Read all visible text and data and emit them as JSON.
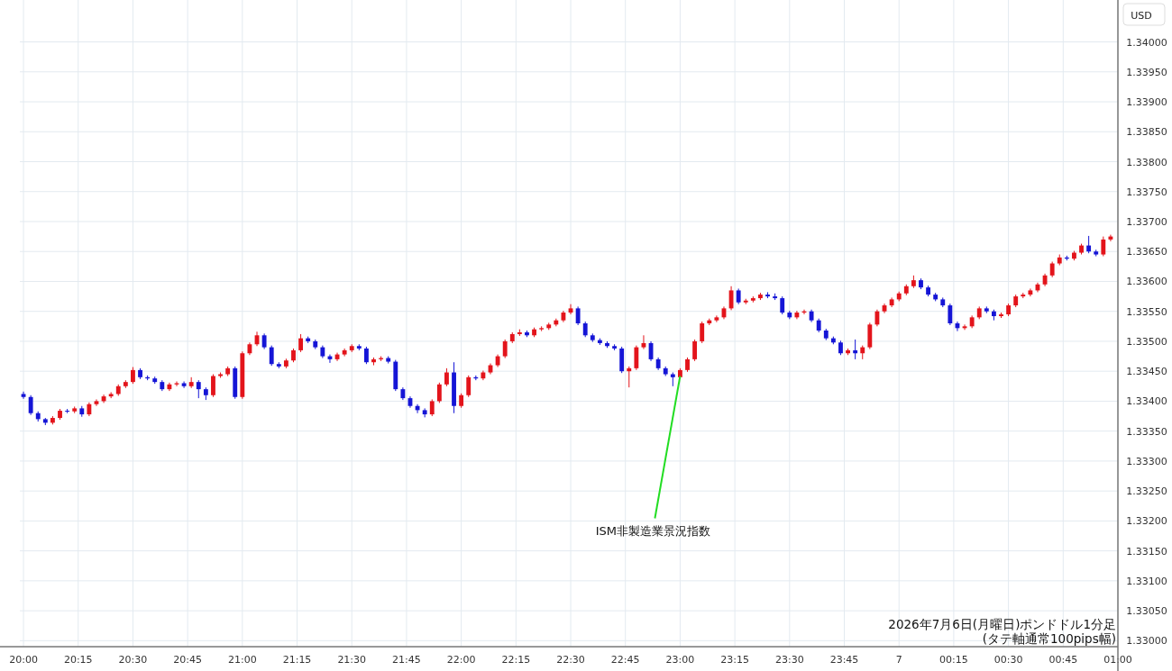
{
  "chart_data": {
    "type": "candlestick",
    "ylabel": "USD",
    "x": [
      "2026-07-06T20:00",
      "2026-07-06T20:02",
      "2026-07-06T20:04",
      "2026-07-06T20:06",
      "2026-07-06T20:08",
      "2026-07-06T20:10",
      "2026-07-06T20:12",
      "2026-07-06T20:14",
      "2026-07-06T20:16",
      "2026-07-06T20:18",
      "2026-07-06T20:20",
      "2026-07-06T20:22",
      "2026-07-06T20:24",
      "2026-07-06T20:26",
      "2026-07-06T20:28",
      "2026-07-06T20:30",
      "2026-07-06T20:32",
      "2026-07-06T20:34",
      "2026-07-06T20:36",
      "2026-07-06T20:38",
      "2026-07-06T20:40",
      "2026-07-06T20:42",
      "2026-07-06T20:44",
      "2026-07-06T20:46",
      "2026-07-06T20:48",
      "2026-07-06T20:50",
      "2026-07-06T20:52",
      "2026-07-06T20:54",
      "2026-07-06T20:56",
      "2026-07-06T20:58",
      "2026-07-06T21:00",
      "2026-07-06T21:02",
      "2026-07-06T21:04",
      "2026-07-06T21:06",
      "2026-07-06T21:08",
      "2026-07-06T21:10",
      "2026-07-06T21:12",
      "2026-07-06T21:14",
      "2026-07-06T21:16",
      "2026-07-06T21:18",
      "2026-07-06T21:20",
      "2026-07-06T21:22",
      "2026-07-06T21:24",
      "2026-07-06T21:26",
      "2026-07-06T21:28",
      "2026-07-06T21:30",
      "2026-07-06T21:32",
      "2026-07-06T21:34",
      "2026-07-06T21:36",
      "2026-07-06T21:38",
      "2026-07-06T21:40",
      "2026-07-06T21:42",
      "2026-07-06T21:44",
      "2026-07-06T21:46",
      "2026-07-06T21:48",
      "2026-07-06T21:50",
      "2026-07-06T21:52",
      "2026-07-06T21:54",
      "2026-07-06T21:56",
      "2026-07-06T21:58",
      "2026-07-06T22:00",
      "2026-07-06T22:02",
      "2026-07-06T22:04",
      "2026-07-06T22:06",
      "2026-07-06T22:08",
      "2026-07-06T22:10",
      "2026-07-06T22:12",
      "2026-07-06T22:14",
      "2026-07-06T22:16",
      "2026-07-06T22:18",
      "2026-07-06T22:20",
      "2026-07-06T22:22",
      "2026-07-06T22:24",
      "2026-07-06T22:26",
      "2026-07-06T22:28",
      "2026-07-06T22:30",
      "2026-07-06T22:32",
      "2026-07-06T22:34",
      "2026-07-06T22:36",
      "2026-07-06T22:38",
      "2026-07-06T22:40",
      "2026-07-06T22:42",
      "2026-07-06T22:44",
      "2026-07-06T22:46",
      "2026-07-06T22:48",
      "2026-07-06T22:50",
      "2026-07-06T22:52",
      "2026-07-06T22:54",
      "2026-07-06T22:56",
      "2026-07-06T22:58",
      "2026-07-06T23:00",
      "2026-07-06T23:02",
      "2026-07-06T23:04",
      "2026-07-06T23:06",
      "2026-07-06T23:08",
      "2026-07-06T23:10",
      "2026-07-06T23:12",
      "2026-07-06T23:14",
      "2026-07-06T23:16",
      "2026-07-06T23:18",
      "2026-07-06T23:20",
      "2026-07-06T23:22",
      "2026-07-06T23:24",
      "2026-07-06T23:26",
      "2026-07-06T23:28",
      "2026-07-06T23:30",
      "2026-07-06T23:32",
      "2026-07-06T23:34",
      "2026-07-06T23:36",
      "2026-07-06T23:38",
      "2026-07-06T23:40",
      "2026-07-06T23:42",
      "2026-07-06T23:44",
      "2026-07-06T23:46",
      "2026-07-06T23:48",
      "2026-07-06T23:50",
      "2026-07-06T23:52",
      "2026-07-06T23:54",
      "2026-07-06T23:56",
      "2026-07-06T23:58",
      "2026-07-07T00:00",
      "2026-07-07T00:02",
      "2026-07-07T00:04",
      "2026-07-07T00:06",
      "2026-07-07T00:08",
      "2026-07-07T00:10",
      "2026-07-07T00:12",
      "2026-07-07T00:14",
      "2026-07-07T00:16",
      "2026-07-07T00:18",
      "2026-07-07T00:20",
      "2026-07-07T00:22",
      "2026-07-07T00:24",
      "2026-07-07T00:26",
      "2026-07-07T00:28",
      "2026-07-07T00:30",
      "2026-07-07T00:32",
      "2026-07-07T00:34",
      "2026-07-07T00:36",
      "2026-07-07T00:38",
      "2026-07-07T00:40",
      "2026-07-07T00:42",
      "2026-07-07T00:44",
      "2026-07-07T00:46",
      "2026-07-07T00:48",
      "2026-07-07T00:50",
      "2026-07-07T00:52",
      "2026-07-07T00:54",
      "2026-07-07T00:56",
      "2026-07-07T00:58"
    ],
    "ohlc": [
      [
        1.33412,
        1.33416,
        1.33404,
        1.33407
      ],
      [
        1.33407,
        1.3341,
        1.33377,
        1.3338
      ],
      [
        1.3338,
        1.33383,
        1.33366,
        1.3337
      ],
      [
        1.3337,
        1.33372,
        1.3336,
        1.33364
      ],
      [
        1.33364,
        1.33375,
        1.33361,
        1.33372
      ],
      [
        1.33372,
        1.33387,
        1.33369,
        1.33384
      ],
      [
        1.33384,
        1.33387,
        1.3338,
        1.33383
      ],
      [
        1.33383,
        1.33391,
        1.3338,
        1.33388
      ],
      [
        1.33388,
        1.33392,
        1.33374,
        1.33378
      ],
      [
        1.33378,
        1.33398,
        1.33375,
        1.33395
      ],
      [
        1.33395,
        1.33403,
        1.33392,
        1.334
      ],
      [
        1.334,
        1.33411,
        1.33397,
        1.33408
      ],
      [
        1.33408,
        1.33415,
        1.33405,
        1.33412
      ],
      [
        1.33412,
        1.33428,
        1.33409,
        1.33425
      ],
      [
        1.33425,
        1.33435,
        1.33422,
        1.33432
      ],
      [
        1.33432,
        1.33457,
        1.33429,
        1.33452
      ],
      [
        1.33452,
        1.33455,
        1.33437,
        1.3344
      ],
      [
        1.3344,
        1.33443,
        1.33435,
        1.33438
      ],
      [
        1.33438,
        1.33441,
        1.33429,
        1.33432
      ],
      [
        1.33432,
        1.33435,
        1.33417,
        1.3342
      ],
      [
        1.3342,
        1.33431,
        1.33417,
        1.33428
      ],
      [
        1.33428,
        1.33433,
        1.33425,
        1.3343
      ],
      [
        1.3343,
        1.33433,
        1.33422,
        1.33425
      ],
      [
        1.33425,
        1.3344,
        1.33422,
        1.33432
      ],
      [
        1.33432,
        1.33435,
        1.33405,
        1.3342
      ],
      [
        1.3342,
        1.33423,
        1.33402,
        1.3341
      ],
      [
        1.3341,
        1.33445,
        1.33407,
        1.33442
      ],
      [
        1.33442,
        1.33448,
        1.33439,
        1.33445
      ],
      [
        1.33445,
        1.33458,
        1.33442,
        1.33455
      ],
      [
        1.33455,
        1.33458,
        1.33404,
        1.33407
      ],
      [
        1.33407,
        1.33483,
        1.33404,
        1.3348
      ],
      [
        1.3348,
        1.33498,
        1.33477,
        1.33495
      ],
      [
        1.33495,
        1.33516,
        1.33492,
        1.3351
      ],
      [
        1.3351,
        1.33513,
        1.33487,
        1.3349
      ],
      [
        1.3349,
        1.33493,
        1.33459,
        1.33462
      ],
      [
        1.33462,
        1.33465,
        1.33455,
        1.33458
      ],
      [
        1.33458,
        1.33471,
        1.33455,
        1.33468
      ],
      [
        1.33468,
        1.33488,
        1.33465,
        1.33485
      ],
      [
        1.33485,
        1.33512,
        1.33482,
        1.33505
      ],
      [
        1.33505,
        1.33508,
        1.33497,
        1.335
      ],
      [
        1.335,
        1.33503,
        1.33487,
        1.3349
      ],
      [
        1.3349,
        1.33493,
        1.33472,
        1.33475
      ],
      [
        1.33475,
        1.33478,
        1.33464,
        1.3347
      ],
      [
        1.3347,
        1.33481,
        1.33467,
        1.33478
      ],
      [
        1.33478,
        1.33488,
        1.33475,
        1.33485
      ],
      [
        1.33485,
        1.33495,
        1.33482,
        1.33492
      ],
      [
        1.33492,
        1.33495,
        1.33485,
        1.33488
      ],
      [
        1.33488,
        1.33491,
        1.33462,
        1.33465
      ],
      [
        1.33465,
        1.33473,
        1.3346,
        1.3347
      ],
      [
        1.3347,
        1.33475,
        1.33467,
        1.33472
      ],
      [
        1.33472,
        1.33475,
        1.33463,
        1.33466
      ],
      [
        1.33466,
        1.33469,
        1.33417,
        1.3342
      ],
      [
        1.3342,
        1.33423,
        1.33402,
        1.33405
      ],
      [
        1.33405,
        1.33408,
        1.33389,
        1.33392
      ],
      [
        1.33392,
        1.33395,
        1.3338,
        1.33385
      ],
      [
        1.33385,
        1.33388,
        1.33373,
        1.33378
      ],
      [
        1.33378,
        1.33403,
        1.33375,
        1.334
      ],
      [
        1.334,
        1.33431,
        1.33397,
        1.33428
      ],
      [
        1.33428,
        1.33455,
        1.33425,
        1.33448
      ],
      [
        1.33448,
        1.33465,
        1.3338,
        1.33392
      ],
      [
        1.33392,
        1.33413,
        1.33389,
        1.3341
      ],
      [
        1.3341,
        1.33443,
        1.33407,
        1.3344
      ],
      [
        1.3344,
        1.33443,
        1.33435,
        1.33438
      ],
      [
        1.33438,
        1.33451,
        1.33435,
        1.33448
      ],
      [
        1.33448,
        1.33463,
        1.33445,
        1.3346
      ],
      [
        1.3346,
        1.33478,
        1.33457,
        1.33475
      ],
      [
        1.33475,
        1.33503,
        1.33472,
        1.335
      ],
      [
        1.335,
        1.33515,
        1.33497,
        1.33512
      ],
      [
        1.33512,
        1.3352,
        1.33509,
        1.33515
      ],
      [
        1.33515,
        1.33518,
        1.33507,
        1.3351
      ],
      [
        1.3351,
        1.33523,
        1.33507,
        1.3352
      ],
      [
        1.3352,
        1.33525,
        1.33517,
        1.33522
      ],
      [
        1.33522,
        1.33531,
        1.33519,
        1.33528
      ],
      [
        1.33528,
        1.33538,
        1.33525,
        1.33535
      ],
      [
        1.33535,
        1.33551,
        1.33532,
        1.33548
      ],
      [
        1.33548,
        1.33562,
        1.33545,
        1.33555
      ],
      [
        1.33555,
        1.33558,
        1.33527,
        1.3353
      ],
      [
        1.3353,
        1.33533,
        1.33507,
        1.3351
      ],
      [
        1.3351,
        1.33513,
        1.33499,
        1.33502
      ],
      [
        1.33502,
        1.33505,
        1.33494,
        1.33497
      ],
      [
        1.33497,
        1.335,
        1.33489,
        1.33492
      ],
      [
        1.33492,
        1.33495,
        1.33485,
        1.33488
      ],
      [
        1.33488,
        1.33491,
        1.33447,
        1.3345
      ],
      [
        1.3345,
        1.33458,
        1.33423,
        1.33455
      ],
      [
        1.33455,
        1.33493,
        1.33452,
        1.3349
      ],
      [
        1.3349,
        1.3351,
        1.33487,
        1.33497
      ],
      [
        1.33497,
        1.335,
        1.33467,
        1.3347
      ],
      [
        1.3347,
        1.33473,
        1.33452,
        1.33455
      ],
      [
        1.33455,
        1.33458,
        1.33442,
        1.33445
      ],
      [
        1.33445,
        1.33448,
        1.33425,
        1.3344
      ],
      [
        1.3344,
        1.33455,
        1.33437,
        1.33452
      ],
      [
        1.33452,
        1.33473,
        1.33449,
        1.3347
      ],
      [
        1.3347,
        1.33503,
        1.33467,
        1.335
      ],
      [
        1.335,
        1.33533,
        1.33497,
        1.3353
      ],
      [
        1.3353,
        1.33538,
        1.33527,
        1.33535
      ],
      [
        1.33535,
        1.33543,
        1.33532,
        1.3354
      ],
      [
        1.3354,
        1.33558,
        1.33537,
        1.33555
      ],
      [
        1.33555,
        1.33592,
        1.33552,
        1.33585
      ],
      [
        1.33585,
        1.33588,
        1.33562,
        1.33565
      ],
      [
        1.33565,
        1.33571,
        1.33562,
        1.33568
      ],
      [
        1.33568,
        1.33575,
        1.33565,
        1.33572
      ],
      [
        1.33572,
        1.33581,
        1.33569,
        1.33578
      ],
      [
        1.33578,
        1.33582,
        1.33572,
        1.33575
      ],
      [
        1.33575,
        1.3358,
        1.33569,
        1.33572
      ],
      [
        1.33572,
        1.33575,
        1.33545,
        1.33548
      ],
      [
        1.33548,
        1.33551,
        1.33537,
        1.3354
      ],
      [
        1.3354,
        1.33551,
        1.33537,
        1.33548
      ],
      [
        1.33548,
        1.33553,
        1.33545,
        1.3355
      ],
      [
        1.3355,
        1.33553,
        1.33532,
        1.33535
      ],
      [
        1.33535,
        1.33538,
        1.33515,
        1.33518
      ],
      [
        1.33518,
        1.33521,
        1.33502,
        1.33505
      ],
      [
        1.33505,
        1.33508,
        1.33495,
        1.33498
      ],
      [
        1.33498,
        1.33501,
        1.33477,
        1.3348
      ],
      [
        1.3348,
        1.33488,
        1.33477,
        1.33485
      ],
      [
        1.33485,
        1.33503,
        1.3347,
        1.3348
      ],
      [
        1.3348,
        1.33493,
        1.3347,
        1.3349
      ],
      [
        1.3349,
        1.33531,
        1.33487,
        1.33528
      ],
      [
        1.33528,
        1.33553,
        1.33525,
        1.3355
      ],
      [
        1.3355,
        1.33563,
        1.33547,
        1.3356
      ],
      [
        1.3356,
        1.33573,
        1.33557,
        1.3357
      ],
      [
        1.3357,
        1.33583,
        1.33567,
        1.3358
      ],
      [
        1.3358,
        1.33595,
        1.33577,
        1.33592
      ],
      [
        1.33592,
        1.3361,
        1.33589,
        1.33602
      ],
      [
        1.33602,
        1.33605,
        1.33587,
        1.3359
      ],
      [
        1.3359,
        1.33593,
        1.33575,
        1.33578
      ],
      [
        1.33578,
        1.33581,
        1.33567,
        1.3357
      ],
      [
        1.3357,
        1.33573,
        1.33557,
        1.3356
      ],
      [
        1.3356,
        1.33563,
        1.33527,
        1.3353
      ],
      [
        1.3353,
        1.33533,
        1.33517,
        1.33522
      ],
      [
        1.33522,
        1.33528,
        1.33519,
        1.33525
      ],
      [
        1.33525,
        1.33543,
        1.33522,
        1.3354
      ],
      [
        1.3354,
        1.33558,
        1.33537,
        1.33555
      ],
      [
        1.33555,
        1.33558,
        1.33547,
        1.3355
      ],
      [
        1.3355,
        1.33553,
        1.33535,
        1.33542
      ],
      [
        1.33542,
        1.33548,
        1.33539,
        1.33545
      ],
      [
        1.33545,
        1.33563,
        1.33542,
        1.3356
      ],
      [
        1.3356,
        1.33578,
        1.33557,
        1.33575
      ],
      [
        1.33575,
        1.33581,
        1.33572,
        1.33578
      ],
      [
        1.33578,
        1.33588,
        1.33575,
        1.33585
      ],
      [
        1.33585,
        1.33598,
        1.33582,
        1.33595
      ],
      [
        1.33595,
        1.33613,
        1.33592,
        1.3361
      ],
      [
        1.3361,
        1.33633,
        1.33607,
        1.3363
      ],
      [
        1.3363,
        1.33645,
        1.33627,
        1.3364
      ],
      [
        1.3364,
        1.33643,
        1.33635,
        1.33638
      ],
      [
        1.33638,
        1.33651,
        1.33635,
        1.33648
      ],
      [
        1.33648,
        1.33663,
        1.33645,
        1.3366
      ],
      [
        1.3366,
        1.33676,
        1.33647,
        1.3365
      ],
      [
        1.3365,
        1.33653,
        1.33642,
        1.33645
      ],
      [
        1.33645,
        1.33675,
        1.33642,
        1.3367
      ],
      [
        1.3367,
        1.33678,
        1.33667,
        1.33675
      ]
    ],
    "colors": [
      "#1515d6",
      "#1515d6",
      "#1515d6",
      "#1515d6",
      "#e3141b",
      "#e3141b",
      "#1515d6",
      "#e3141b",
      "#1515d6",
      "#e3141b",
      "#e3141b",
      "#e3141b",
      "#e3141b",
      "#e3141b",
      "#e3141b",
      "#e3141b",
      "#1515d6",
      "#1515d6",
      "#1515d6",
      "#1515d6",
      "#e3141b",
      "#e3141b",
      "#1515d6",
      "#e3141b",
      "#1515d6",
      "#1515d6",
      "#e3141b",
      "#e3141b",
      "#e3141b",
      "#1515d6",
      "#e3141b",
      "#e3141b",
      "#e3141b",
      "#1515d6",
      "#1515d6",
      "#1515d6",
      "#e3141b",
      "#e3141b",
      "#e3141b",
      "#1515d6",
      "#1515d6",
      "#1515d6",
      "#1515d6",
      "#e3141b",
      "#e3141b",
      "#e3141b",
      "#1515d6",
      "#1515d6",
      "#e3141b",
      "#e3141b",
      "#1515d6",
      "#1515d6",
      "#1515d6",
      "#1515d6",
      "#1515d6",
      "#1515d6",
      "#e3141b",
      "#e3141b",
      "#e3141b",
      "#1515d6",
      "#e3141b",
      "#e3141b",
      "#1515d6",
      "#e3141b",
      "#e3141b",
      "#e3141b",
      "#e3141b",
      "#e3141b",
      "#e3141b",
      "#1515d6",
      "#e3141b",
      "#e3141b",
      "#e3141b",
      "#e3141b",
      "#e3141b",
      "#e3141b",
      "#1515d6",
      "#1515d6",
      "#1515d6",
      "#1515d6",
      "#1515d6",
      "#1515d6",
      "#1515d6",
      "#e3141b",
      "#e3141b",
      "#e3141b",
      "#1515d6",
      "#1515d6",
      "#1515d6",
      "#1515d6",
      "#e3141b",
      "#e3141b",
      "#e3141b",
      "#e3141b",
      "#e3141b",
      "#e3141b",
      "#e3141b",
      "#e3141b",
      "#1515d6",
      "#e3141b",
      "#e3141b",
      "#e3141b",
      "#1515d6",
      "#1515d6",
      "#1515d6",
      "#1515d6",
      "#e3141b",
      "#e3141b",
      "#1515d6",
      "#1515d6",
      "#1515d6",
      "#1515d6",
      "#1515d6",
      "#e3141b",
      "#1515d6",
      "#e3141b",
      "#e3141b",
      "#e3141b",
      "#e3141b",
      "#e3141b",
      "#e3141b",
      "#e3141b",
      "#e3141b",
      "#1515d6",
      "#1515d6",
      "#1515d6",
      "#1515d6",
      "#1515d6",
      "#1515d6",
      "#e3141b",
      "#e3141b",
      "#e3141b",
      "#1515d6",
      "#1515d6",
      "#e3141b",
      "#e3141b",
      "#e3141b",
      "#e3141b",
      "#e3141b",
      "#e3141b",
      "#e3141b",
      "#e3141b",
      "#e3141b",
      "#1515d6",
      "#e3141b",
      "#e3141b",
      "#1515d6",
      "#1515d6",
      "#e3141b",
      "#e3141b"
    ],
    "xlim": [
      "2026-07-06T19:59",
      "2026-07-07T01:00"
    ],
    "xticks": [
      {
        "value": "2026-07-06T20:00",
        "label": "20:00"
      },
      {
        "value": "2026-07-06T20:15",
        "label": "20:15"
      },
      {
        "value": "2026-07-06T20:30",
        "label": "20:30"
      },
      {
        "value": "2026-07-06T20:45",
        "label": "20:45"
      },
      {
        "value": "2026-07-06T21:00",
        "label": "21:00"
      },
      {
        "value": "2026-07-06T21:15",
        "label": "21:15"
      },
      {
        "value": "2026-07-06T21:30",
        "label": "21:30"
      },
      {
        "value": "2026-07-06T21:45",
        "label": "21:45"
      },
      {
        "value": "2026-07-06T22:00",
        "label": "22:00"
      },
      {
        "value": "2026-07-06T22:15",
        "label": "22:15"
      },
      {
        "value": "2026-07-06T22:30",
        "label": "22:30"
      },
      {
        "value": "2026-07-06T22:45",
        "label": "22:45"
      },
      {
        "value": "2026-07-06T23:00",
        "label": "23:00"
      },
      {
        "value": "2026-07-06T23:15",
        "label": "23:15"
      },
      {
        "value": "2026-07-06T23:30",
        "label": "23:30"
      },
      {
        "value": "2026-07-06T23:45",
        "label": "23:45"
      },
      {
        "value": "2026-07-07T00:00",
        "label": "7"
      },
      {
        "value": "2026-07-07T00:15",
        "label": "00:15"
      },
      {
        "value": "2026-07-07T00:30",
        "label": "00:30"
      },
      {
        "value": "2026-07-07T00:45",
        "label": "00:45"
      },
      {
        "value": "2026-07-07T01:00",
        "label": "01:00"
      }
    ],
    "ylim": [
      1.3299,
      1.3407
    ],
    "yticks": [
      {
        "value": 1.33,
        "label": "1.33000"
      },
      {
        "value": 1.3305,
        "label": "1.33050"
      },
      {
        "value": 1.331,
        "label": "1.33100"
      },
      {
        "value": 1.3315,
        "label": "1.33150"
      },
      {
        "value": 1.332,
        "label": "1.33200"
      },
      {
        "value": 1.3325,
        "label": "1.33250"
      },
      {
        "value": 1.333,
        "label": "1.33300"
      },
      {
        "value": 1.3335,
        "label": "1.33350"
      },
      {
        "value": 1.334,
        "label": "1.33400"
      },
      {
        "value": 1.3345,
        "label": "1.33450"
      },
      {
        "value": 1.335,
        "label": "1.33500"
      },
      {
        "value": 1.3355,
        "label": "1.33550"
      },
      {
        "value": 1.336,
        "label": "1.33600"
      },
      {
        "value": 1.3365,
        "label": "1.33650"
      },
      {
        "value": 1.337,
        "label": "1.33700"
      },
      {
        "value": 1.3375,
        "label": "1.33750"
      },
      {
        "value": 1.338,
        "label": "1.33800"
      },
      {
        "value": 1.3385,
        "label": "1.33850"
      },
      {
        "value": 1.339,
        "label": "1.33900"
      },
      {
        "value": 1.3395,
        "label": "1.33950"
      },
      {
        "value": 1.34,
        "label": "1.34000"
      }
    ],
    "grid": true,
    "annotations": [
      {
        "text": "ISM非製造業景況指数",
        "x": "2026-07-06T23:00",
        "y": 1.33442
      },
      "2026年7月6日(月曜日)ポンドドル1分足",
      "(タテ軸通常100pips幅)"
    ]
  }
}
